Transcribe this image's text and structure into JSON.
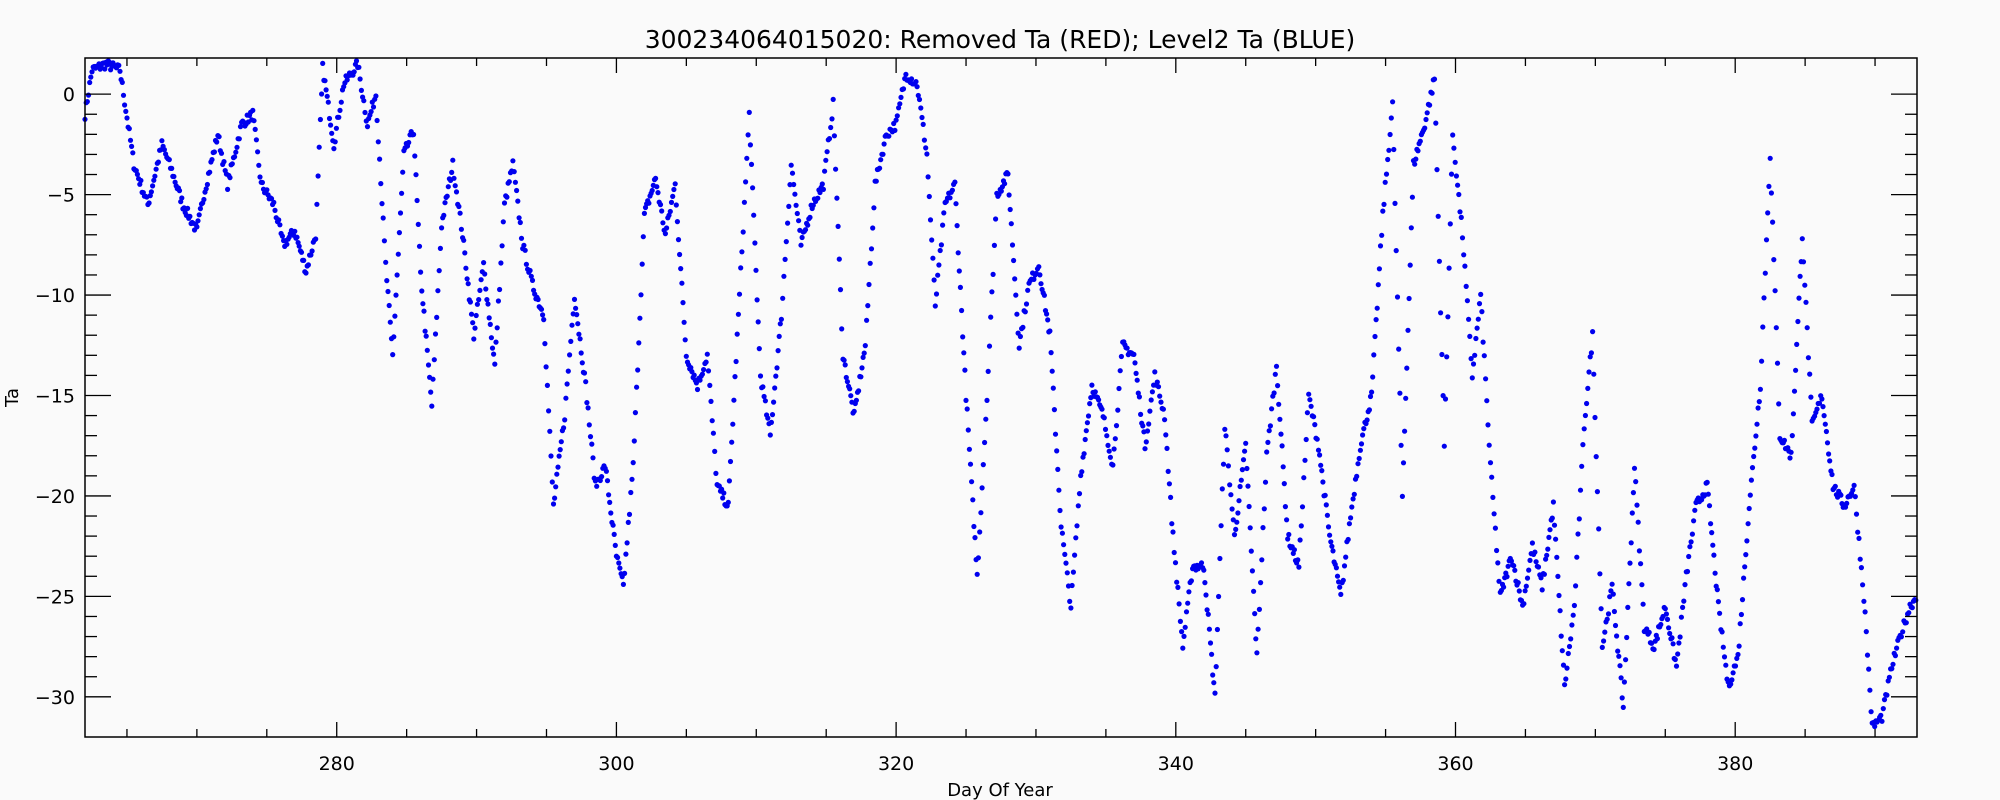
{
  "chart_data": {
    "type": "scatter",
    "title": "300234064015020: Removed Ta (RED); Level2 Ta (BLUE)",
    "xlabel": "Day Of Year",
    "ylabel": "Ta",
    "xlim": [
      262,
      393
    ],
    "ylim": [
      -32,
      1.8
    ],
    "x_ticks": [
      280,
      300,
      320,
      340,
      360,
      380
    ],
    "x_tick_labels": [
      "280",
      "300",
      "320",
      "340",
      "360",
      "380"
    ],
    "y_ticks": [
      0,
      -5,
      -10,
      -15,
      -20,
      -25,
      -30
    ],
    "y_tick_labels": [
      "0",
      "−5",
      "−10",
      "−15",
      "−20",
      "−25",
      "−30"
    ],
    "grid": false,
    "legend": "none",
    "colors": {
      "level2": "#0000ee",
      "axis": "#000000",
      "background": "#fafafa"
    },
    "series": [
      {
        "color": "#0000ee",
        "points_per_day": 12,
        "anchors": [
          [
            262.0,
            -1.0
          ],
          [
            262.5,
            1.2
          ],
          [
            263.5,
            1.5
          ],
          [
            264.5,
            1.2
          ],
          [
            265.5,
            -3.5
          ],
          [
            266.5,
            -5.5
          ],
          [
            267.5,
            -2.5
          ],
          [
            268.2,
            -3.8
          ],
          [
            269.0,
            -5.5
          ],
          [
            270.0,
            -6.8
          ],
          [
            270.5,
            -5.0
          ],
          [
            271.5,
            -2.0
          ],
          [
            272.2,
            -4.5
          ],
          [
            273.2,
            -1.5
          ],
          [
            274.0,
            -1.0
          ],
          [
            274.6,
            -4.5
          ],
          [
            275.5,
            -5.5
          ],
          [
            276.2,
            -7.5
          ],
          [
            277.0,
            -6.8
          ],
          [
            277.8,
            -8.8
          ],
          [
            278.5,
            -7.0
          ],
          [
            279.0,
            1.3
          ],
          [
            279.8,
            -2.5
          ],
          [
            280.5,
            0.5
          ],
          [
            281.5,
            1.5
          ],
          [
            282.2,
            -1.5
          ],
          [
            282.8,
            0.0
          ],
          [
            283.5,
            -8.5
          ],
          [
            284.0,
            -13.0
          ],
          [
            284.8,
            -3.0
          ],
          [
            285.5,
            -1.8
          ],
          [
            286.0,
            -9.0
          ],
          [
            286.8,
            -15.5
          ],
          [
            287.5,
            -6.5
          ],
          [
            288.3,
            -3.5
          ],
          [
            289.0,
            -7.0
          ],
          [
            289.8,
            -12.0
          ],
          [
            290.5,
            -8.5
          ],
          [
            291.3,
            -13.5
          ],
          [
            292.0,
            -5.5
          ],
          [
            292.6,
            -3.5
          ],
          [
            293.3,
            -7.5
          ],
          [
            294.0,
            -9.5
          ],
          [
            294.8,
            -11.0
          ],
          [
            295.5,
            -20.5
          ],
          [
            296.3,
            -16.0
          ],
          [
            297.0,
            -10.0
          ],
          [
            297.8,
            -14.5
          ],
          [
            298.5,
            -19.5
          ],
          [
            299.2,
            -18.5
          ],
          [
            300.0,
            -23.0
          ],
          [
            300.5,
            -24.5
          ],
          [
            301.2,
            -18.5
          ],
          [
            302.0,
            -6.0
          ],
          [
            302.8,
            -4.2
          ],
          [
            303.5,
            -7.0
          ],
          [
            304.2,
            -4.5
          ],
          [
            305.0,
            -13.0
          ],
          [
            305.8,
            -14.5
          ],
          [
            306.5,
            -13.0
          ],
          [
            307.2,
            -19.5
          ],
          [
            308.0,
            -20.5
          ],
          [
            308.8,
            -10.0
          ],
          [
            309.5,
            -1.0
          ],
          [
            310.3,
            -14.0
          ],
          [
            311.0,
            -17.0
          ],
          [
            311.8,
            -11.0
          ],
          [
            312.5,
            -3.5
          ],
          [
            313.2,
            -7.5
          ],
          [
            314.0,
            -5.5
          ],
          [
            314.8,
            -4.5
          ],
          [
            315.5,
            -0.5
          ],
          [
            316.2,
            -13.0
          ],
          [
            317.0,
            -16.0
          ],
          [
            317.8,
            -12.5
          ],
          [
            318.5,
            -4.5
          ],
          [
            319.3,
            -2.0
          ],
          [
            320.0,
            -1.5
          ],
          [
            320.7,
            1.0
          ],
          [
            321.5,
            0.5
          ],
          [
            322.2,
            -3.0
          ],
          [
            322.8,
            -10.5
          ],
          [
            323.5,
            -5.5
          ],
          [
            324.2,
            -4.5
          ],
          [
            325.0,
            -15.0
          ],
          [
            325.8,
            -24.0
          ],
          [
            326.5,
            -15.0
          ],
          [
            327.2,
            -5.0
          ],
          [
            328.0,
            -4.0
          ],
          [
            328.8,
            -12.5
          ],
          [
            329.5,
            -9.5
          ],
          [
            330.2,
            -8.5
          ],
          [
            331.0,
            -12.0
          ],
          [
            331.8,
            -21.5
          ],
          [
            332.5,
            -25.5
          ],
          [
            333.2,
            -19.0
          ],
          [
            334.0,
            -14.5
          ],
          [
            334.8,
            -16.0
          ],
          [
            335.5,
            -18.5
          ],
          [
            336.2,
            -12.5
          ],
          [
            337.0,
            -13.0
          ],
          [
            337.8,
            -17.5
          ],
          [
            338.5,
            -14.0
          ],
          [
            339.2,
            -16.0
          ],
          [
            339.8,
            -22.0
          ],
          [
            340.5,
            -27.5
          ],
          [
            341.2,
            -23.5
          ],
          [
            342.0,
            -23.5
          ],
          [
            342.8,
            -30.0
          ],
          [
            343.5,
            -16.5
          ],
          [
            344.2,
            -22.0
          ],
          [
            345.0,
            -17.5
          ],
          [
            345.8,
            -28.0
          ],
          [
            346.5,
            -18.0
          ],
          [
            347.2,
            -13.5
          ],
          [
            348.0,
            -22.0
          ],
          [
            348.8,
            -23.5
          ],
          [
            349.5,
            -15.0
          ],
          [
            350.2,
            -17.5
          ],
          [
            351.0,
            -22.0
          ],
          [
            351.8,
            -25.0
          ],
          [
            352.5,
            -21.0
          ],
          [
            353.2,
            -17.5
          ],
          [
            354.0,
            -15.0
          ],
          [
            354.8,
            -6.0
          ],
          [
            355.5,
            -0.5
          ],
          [
            356.2,
            -20.0
          ],
          [
            357.0,
            -3.5
          ],
          [
            357.8,
            -1.5
          ],
          [
            358.5,
            0.8
          ],
          [
            359.2,
            -17.5
          ],
          [
            359.8,
            -2.0
          ],
          [
            360.5,
            -7.0
          ],
          [
            361.2,
            -14.0
          ],
          [
            361.8,
            -10.0
          ],
          [
            362.5,
            -18.5
          ],
          [
            363.2,
            -25.0
          ],
          [
            364.0,
            -23.0
          ],
          [
            364.8,
            -25.5
          ],
          [
            365.5,
            -22.5
          ],
          [
            366.2,
            -24.5
          ],
          [
            367.0,
            -20.5
          ],
          [
            367.8,
            -29.5
          ],
          [
            368.5,
            -25.5
          ],
          [
            369.2,
            -16.5
          ],
          [
            369.8,
            -12.0
          ],
          [
            370.5,
            -27.5
          ],
          [
            371.2,
            -24.5
          ],
          [
            372.0,
            -30.5
          ],
          [
            372.8,
            -18.5
          ],
          [
            373.5,
            -26.5
          ],
          [
            374.2,
            -27.5
          ],
          [
            375.0,
            -25.5
          ],
          [
            375.8,
            -28.5
          ],
          [
            376.5,
            -24.0
          ],
          [
            377.2,
            -20.5
          ],
          [
            378.0,
            -19.5
          ],
          [
            378.8,
            -25.5
          ],
          [
            379.5,
            -29.5
          ],
          [
            380.2,
            -28.0
          ],
          [
            381.0,
            -20.5
          ],
          [
            381.8,
            -14.5
          ],
          [
            382.5,
            -3.0
          ],
          [
            383.2,
            -17.0
          ],
          [
            384.0,
            -18.0
          ],
          [
            384.8,
            -7.0
          ],
          [
            385.5,
            -16.5
          ],
          [
            386.2,
            -15.0
          ],
          [
            387.0,
            -19.5
          ],
          [
            387.8,
            -20.5
          ],
          [
            388.5,
            -19.5
          ],
          [
            389.2,
            -25.0
          ],
          [
            389.8,
            -31.5
          ],
          [
            390.5,
            -31.0
          ],
          [
            391.2,
            -28.5
          ],
          [
            391.8,
            -27.0
          ],
          [
            392.5,
            -25.5
          ],
          [
            393.0,
            -25.0
          ]
        ]
      }
    ]
  }
}
